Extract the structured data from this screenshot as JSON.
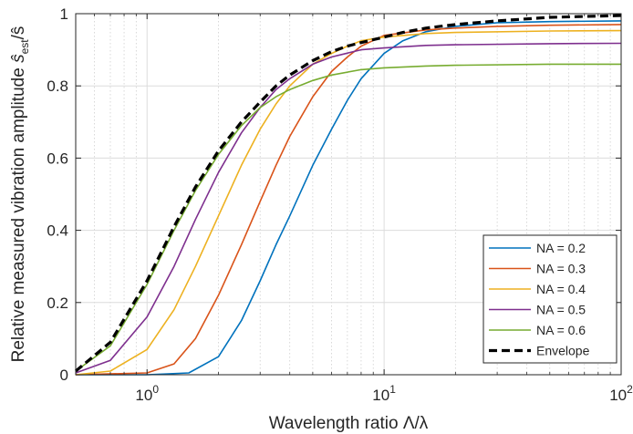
{
  "chart_data": {
    "type": "line",
    "xscale": "log",
    "xlim": [
      0.5,
      100
    ],
    "ylim": [
      0,
      1
    ],
    "grid": true,
    "minor_grid_x": true,
    "legend_position": "bottom-right",
    "xlabel": "Wavelength ratio Λ/λ",
    "ylabel_main": "Relative measured vibration amplitude ",
    "ylabel_symbol": "ŝ",
    "ylabel_subscript": "est",
    "ylabel_tail": "/ŝ",
    "x_ticks": [
      {
        "value": 1,
        "base": "10",
        "exp": "0"
      },
      {
        "value": 10,
        "base": "10",
        "exp": "1"
      },
      {
        "value": 100,
        "base": "10",
        "exp": "2"
      }
    ],
    "y_ticks": [
      {
        "value": 0,
        "label": "0"
      },
      {
        "value": 0.2,
        "label": "0.2"
      },
      {
        "value": 0.4,
        "label": "0.4"
      },
      {
        "value": 0.6,
        "label": "0.6"
      },
      {
        "value": 0.8,
        "label": "0.8"
      },
      {
        "value": 1,
        "label": "1"
      }
    ],
    "series": [
      {
        "name": "NA = 0.2",
        "color": "#0072BD",
        "dashed": false,
        "x": [
          0.5,
          1.0,
          1.5,
          2.0,
          2.5,
          3.0,
          3.5,
          4.0,
          5.0,
          6.0,
          7.0,
          8.0,
          10,
          12,
          15,
          20,
          30,
          50,
          100
        ],
        "y": [
          0,
          0,
          0.005,
          0.05,
          0.15,
          0.26,
          0.36,
          0.44,
          0.58,
          0.68,
          0.76,
          0.82,
          0.89,
          0.925,
          0.95,
          0.965,
          0.975,
          0.978,
          0.98
        ]
      },
      {
        "name": "NA = 0.3",
        "color": "#D95319",
        "dashed": false,
        "x": [
          0.5,
          1.0,
          1.3,
          1.6,
          2.0,
          2.5,
          3.0,
          3.5,
          4.0,
          5.0,
          6.0,
          7.0,
          8.0,
          10,
          15,
          20,
          30,
          50,
          100
        ],
        "y": [
          0,
          0.005,
          0.03,
          0.1,
          0.22,
          0.36,
          0.48,
          0.58,
          0.66,
          0.77,
          0.84,
          0.88,
          0.91,
          0.94,
          0.955,
          0.96,
          0.965,
          0.968,
          0.97
        ]
      },
      {
        "name": "NA = 0.4",
        "color": "#EDB120",
        "dashed": false,
        "x": [
          0.5,
          0.7,
          1.0,
          1.3,
          1.6,
          2.0,
          2.5,
          3.0,
          3.5,
          4.0,
          5.0,
          6.0,
          7.0,
          8.0,
          10,
          15,
          20,
          50,
          100
        ],
        "y": [
          0,
          0.01,
          0.07,
          0.18,
          0.3,
          0.44,
          0.58,
          0.68,
          0.75,
          0.8,
          0.86,
          0.89,
          0.91,
          0.925,
          0.935,
          0.945,
          0.948,
          0.952,
          0.953
        ]
      },
      {
        "name": "NA = 0.5",
        "color": "#7E2F8E",
        "dashed": false,
        "x": [
          0.5,
          0.7,
          1.0,
          1.3,
          1.6,
          2.0,
          2.5,
          3.0,
          3.5,
          4.0,
          5.0,
          6.0,
          8.0,
          10,
          15,
          20,
          50,
          100
        ],
        "y": [
          0.005,
          0.04,
          0.16,
          0.3,
          0.43,
          0.56,
          0.67,
          0.74,
          0.79,
          0.82,
          0.86,
          0.88,
          0.9,
          0.905,
          0.912,
          0.914,
          0.917,
          0.918
        ]
      },
      {
        "name": "NA = 0.6",
        "color": "#77AC30",
        "dashed": false,
        "x": [
          0.5,
          0.7,
          1.0,
          1.3,
          1.6,
          2.0,
          2.5,
          3.0,
          3.5,
          4.0,
          5.0,
          6.0,
          8.0,
          10,
          15,
          20,
          50,
          100
        ],
        "y": [
          0.01,
          0.08,
          0.25,
          0.4,
          0.51,
          0.61,
          0.69,
          0.74,
          0.77,
          0.79,
          0.815,
          0.83,
          0.845,
          0.85,
          0.855,
          0.857,
          0.86,
          0.86
        ]
      },
      {
        "name": "Envelope",
        "color": "#000000",
        "dashed": true,
        "x": [
          0.5,
          0.7,
          1.0,
          1.3,
          1.6,
          2.0,
          2.5,
          3.0,
          3.5,
          4.0,
          5.0,
          6.0,
          7.0,
          8.0,
          10,
          12,
          15,
          20,
          30,
          50,
          100
        ],
        "y": [
          0.01,
          0.09,
          0.26,
          0.41,
          0.52,
          0.62,
          0.7,
          0.755,
          0.8,
          0.83,
          0.87,
          0.895,
          0.91,
          0.92,
          0.935,
          0.948,
          0.96,
          0.97,
          0.98,
          0.99,
          0.995
        ]
      }
    ]
  }
}
